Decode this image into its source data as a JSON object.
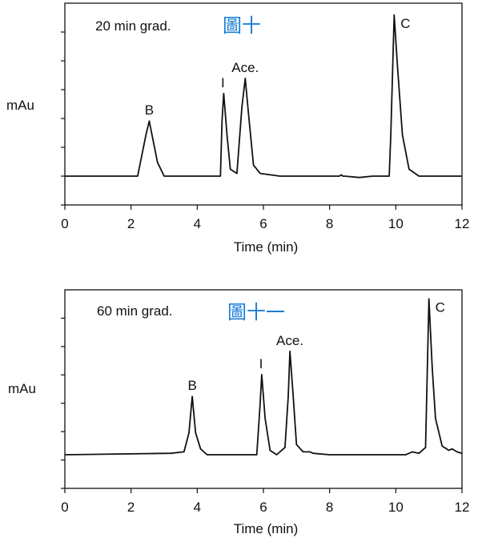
{
  "chart_data": [
    {
      "type": "line",
      "title": "",
      "note": "20 min grad.",
      "stamp": "圖十",
      "xlabel": "Time (min)",
      "ylabel": "mAu",
      "xlim": [
        0,
        12
      ],
      "xticks": [
        "0",
        "2",
        "4",
        "6",
        "8",
        "10",
        "12"
      ],
      "ylim": [
        0,
        1
      ],
      "y_ticks_count": 7,
      "peaks": [
        {
          "label": "B",
          "x": 2.55,
          "height": 0.4
        },
        {
          "label": "I",
          "x": 4.8,
          "height": 0.6
        },
        {
          "label": "Ace.",
          "x": 5.45,
          "height": 0.71
        },
        {
          "label": "C",
          "x": 9.95,
          "height": 1.17
        }
      ],
      "series": [
        {
          "x": [
            0,
            2.2,
            2.45,
            2.55,
            2.65,
            2.8,
            3.0,
            4.7,
            4.75,
            4.8,
            4.9,
            5.0,
            5.2,
            5.35,
            5.45,
            5.55,
            5.7,
            5.9,
            6.5,
            8.3,
            8.35,
            8.4,
            8.45,
            8.9,
            9.3,
            9.8,
            9.85,
            9.95,
            10.05,
            10.2,
            10.4,
            10.7,
            12
          ],
          "y": [
            0,
            0,
            0.3,
            0.4,
            0.28,
            0.1,
            0,
            0,
            0.4,
            0.6,
            0.3,
            0.05,
            0.02,
            0.5,
            0.71,
            0.45,
            0.08,
            0.02,
            0,
            0,
            0.01,
            0,
            0,
            -0.01,
            0,
            0,
            0.3,
            1.17,
            0.8,
            0.3,
            0.05,
            0,
            0
          ]
        }
      ]
    },
    {
      "type": "line",
      "title": "",
      "note": "60 min grad.",
      "stamp": "圖十一",
      "xlabel": "Time (min)",
      "ylabel": "mAu",
      "xlim": [
        0,
        12
      ],
      "xticks": [
        "0",
        "2",
        "4",
        "6",
        "8",
        "10",
        "12"
      ],
      "ylim": [
        0,
        1
      ],
      "y_ticks_count": 7,
      "peaks": [
        {
          "label": "B",
          "x": 3.85,
          "height": 0.4
        },
        {
          "label": "I",
          "x": 5.95,
          "height": 0.55
        },
        {
          "label": "Ace.",
          "x": 6.8,
          "height": 0.71
        },
        {
          "label": "C",
          "x": 11.0,
          "height": 1.07
        }
      ],
      "series": [
        {
          "x": [
            0,
            3.2,
            3.6,
            3.75,
            3.85,
            3.95,
            4.1,
            4.3,
            5.8,
            5.9,
            5.95,
            6.05,
            6.2,
            6.4,
            6.65,
            6.75,
            6.8,
            6.9,
            7.0,
            7.2,
            7.4,
            7.5,
            8,
            10.3,
            10.5,
            10.7,
            10.9,
            11.0,
            11.1,
            11.2,
            11.4,
            11.6,
            11.7,
            11.85,
            12
          ],
          "y": [
            0,
            0.01,
            0.02,
            0.15,
            0.4,
            0.15,
            0.04,
            0,
            0,
            0.35,
            0.55,
            0.25,
            0.03,
            0,
            0.05,
            0.4,
            0.71,
            0.4,
            0.07,
            0.02,
            0.02,
            0.01,
            0,
            0,
            0.02,
            0.01,
            0.05,
            1.07,
            0.6,
            0.25,
            0.06,
            0.03,
            0.04,
            0.02,
            0.01
          ]
        }
      ]
    }
  ]
}
